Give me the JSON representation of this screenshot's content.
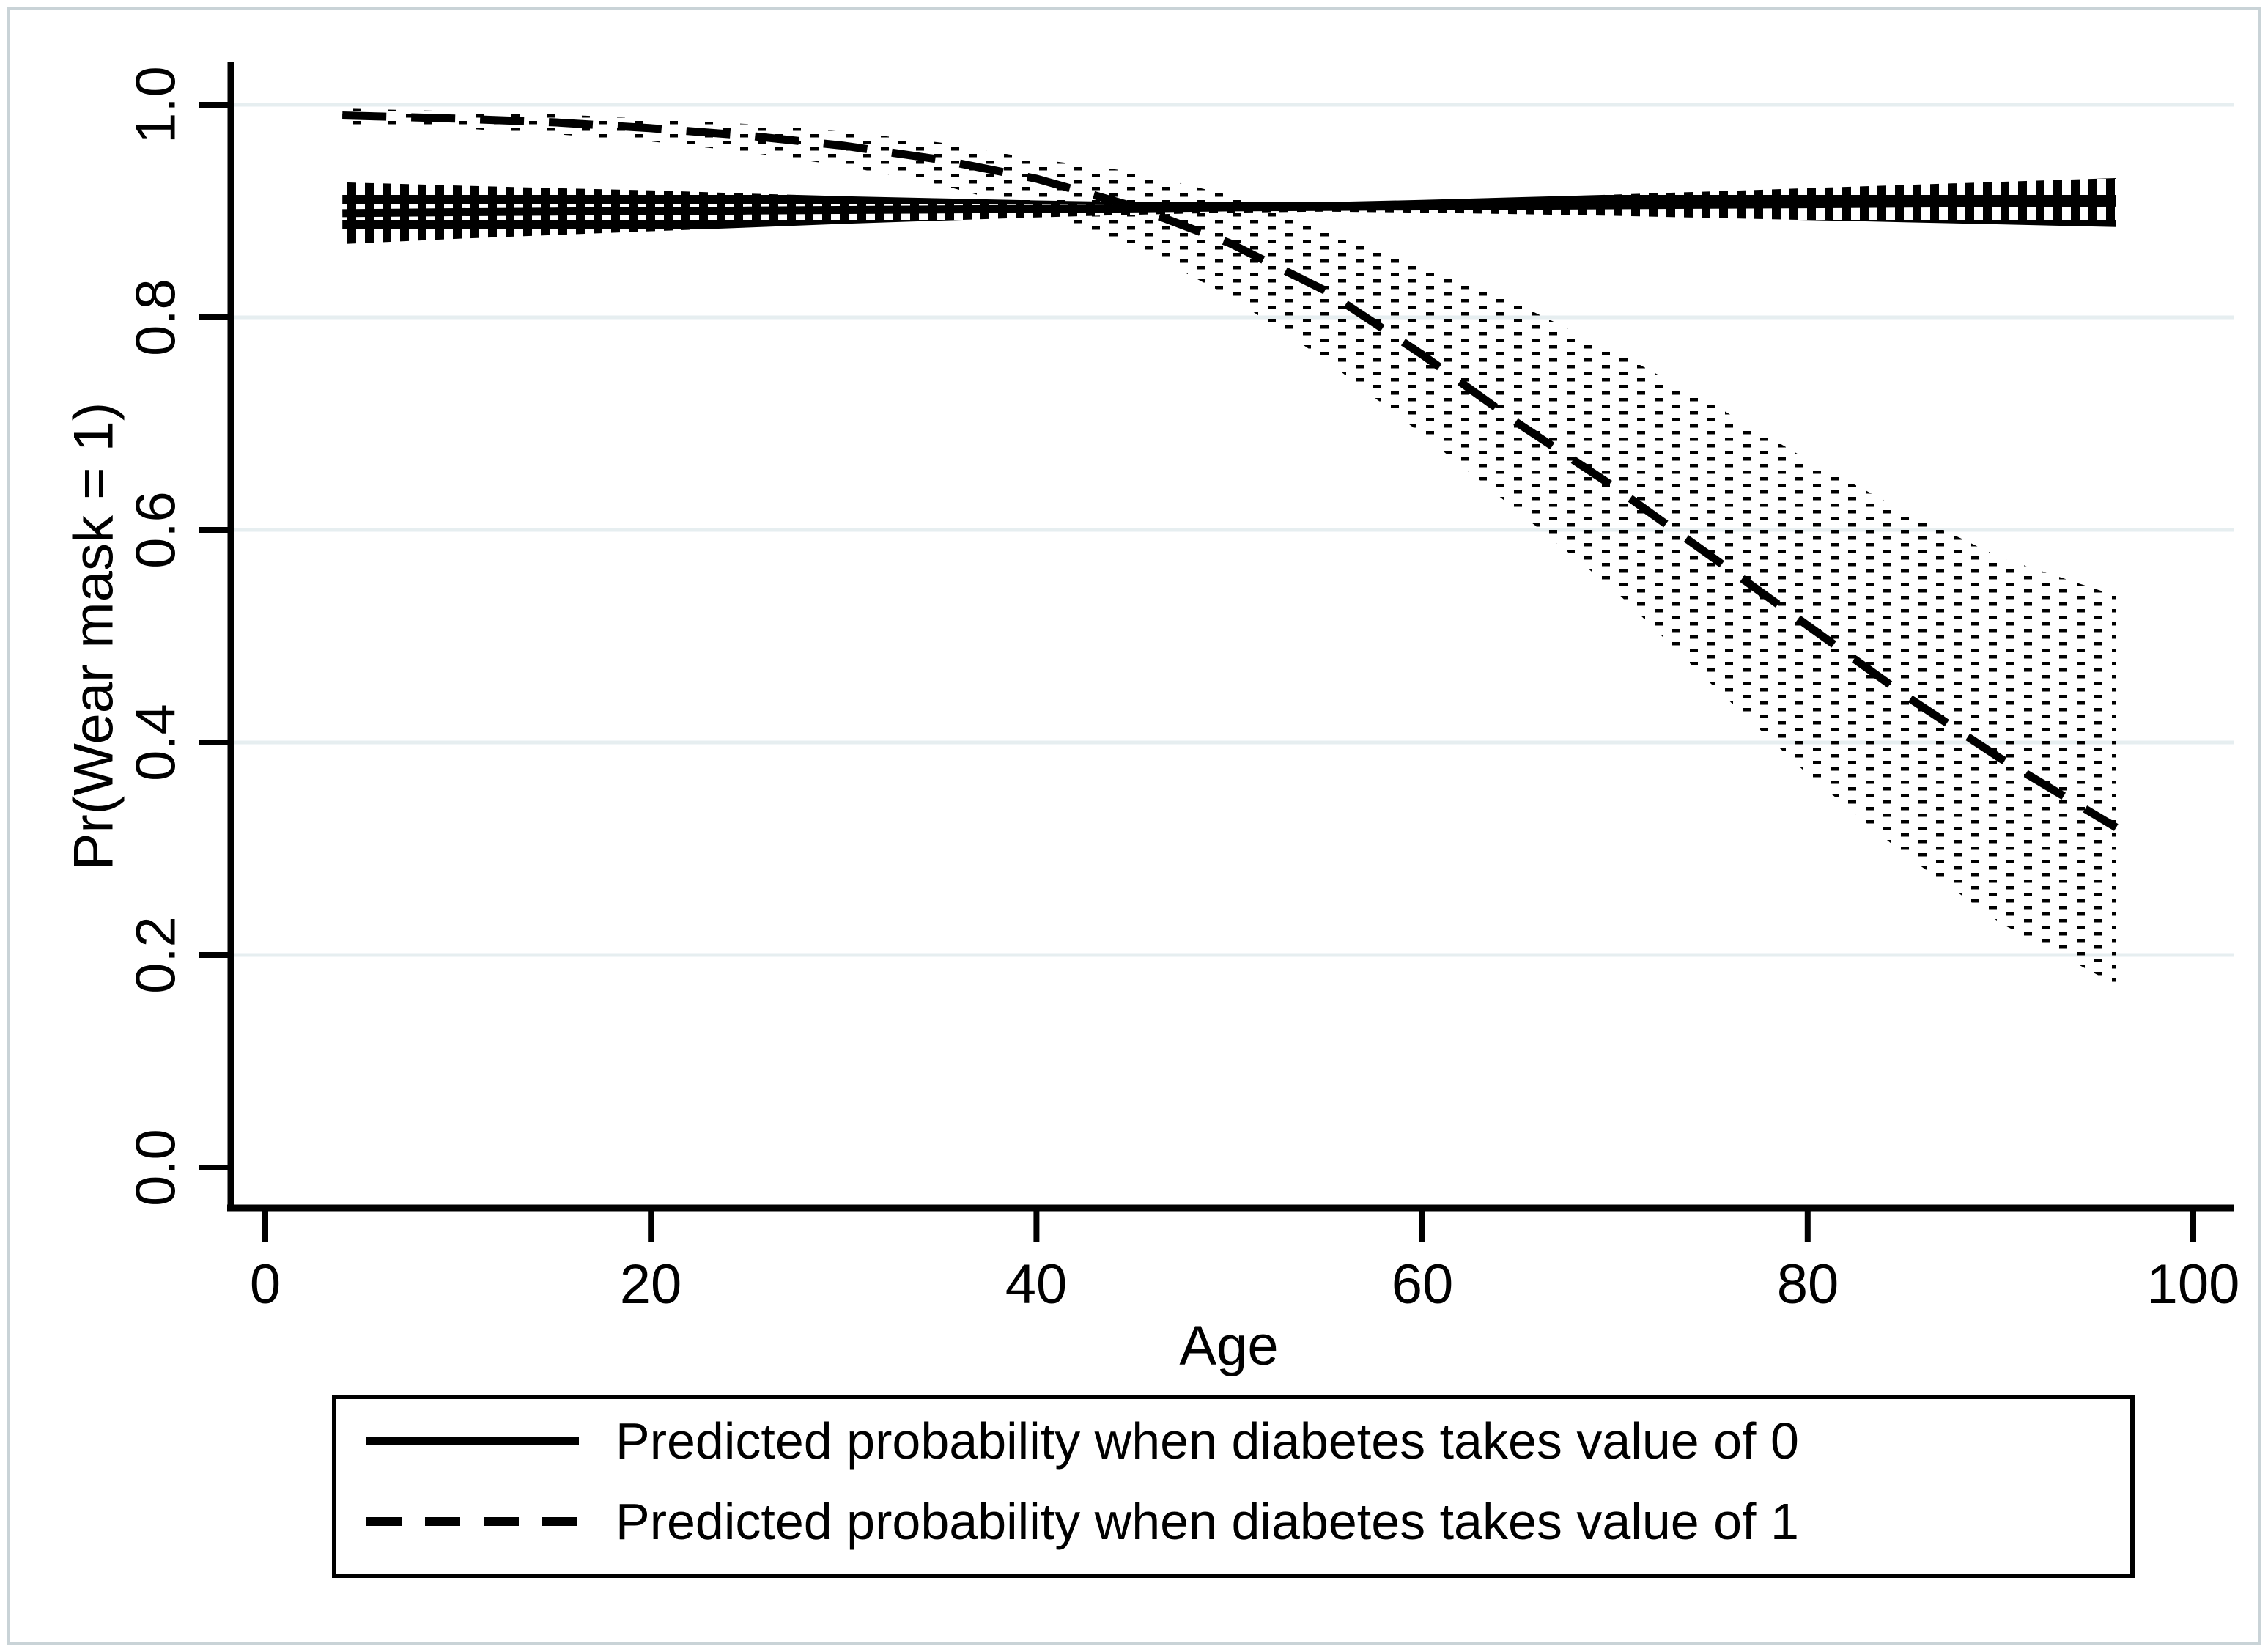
{
  "colors": {
    "foreground": "#000000",
    "background": "#ffffff",
    "gridline": "#e6eef0",
    "outer_frame": "#c9d3d7"
  },
  "chart_data": {
    "type": "line",
    "title": "",
    "xlabel": "Age",
    "ylabel": "Pr(Wear mask = 1)",
    "xlim": [
      0,
      100
    ],
    "ylim": [
      0.0,
      1.0
    ],
    "grid": "horizontal-only",
    "x_ticks": [
      0,
      20,
      40,
      60,
      80,
      100
    ],
    "x_ticklabels": [
      "0",
      "20",
      "40",
      "60",
      "80",
      "100"
    ],
    "y_ticks": [
      0.0,
      0.2,
      0.4,
      0.6,
      0.8,
      1.0
    ],
    "y_ticklabels": [
      "0.0",
      "0.2",
      "0.4",
      "0.6",
      "0.8",
      "1.0"
    ],
    "gridline_values": [
      0.2,
      0.4,
      0.6,
      0.8,
      1.0
    ],
    "x": [
      4,
      10,
      15,
      20,
      25,
      30,
      35,
      40,
      45,
      50,
      55,
      60,
      65,
      70,
      75,
      80,
      85,
      90,
      96
    ],
    "series": [
      {
        "name": "Predicted probability when diabetes takes value of 0",
        "line_style": "solid",
        "ci_fill_pattern": "black-with-white-holes",
        "values": [
          0.898,
          0.899,
          0.8995,
          0.9,
          0.9005,
          0.901,
          0.9015,
          0.902,
          0.9025,
          0.9035,
          0.904,
          0.9045,
          0.905,
          0.9055,
          0.906,
          0.9065,
          0.907,
          0.9075,
          0.908
        ],
        "ci_lower": [
          0.869,
          0.874,
          0.8775,
          0.881,
          0.8845,
          0.888,
          0.891,
          0.894,
          0.8965,
          0.8985,
          0.8995,
          0.8985,
          0.897,
          0.8955,
          0.8935,
          0.8915,
          0.8895,
          0.8875,
          0.885
        ],
        "ci_upper": [
          0.927,
          0.924,
          0.9215,
          0.9195,
          0.9165,
          0.914,
          0.912,
          0.91,
          0.9085,
          0.9085,
          0.9085,
          0.9105,
          0.913,
          0.9155,
          0.9185,
          0.9215,
          0.9245,
          0.9275,
          0.931
        ]
      },
      {
        "name": "Predicted probability when diabetes takes value of 1",
        "line_style": "dashed",
        "ci_fill_pattern": "dotted-lattice",
        "values": [
          0.99,
          0.987,
          0.9835,
          0.978,
          0.971,
          0.9615,
          0.9485,
          0.9305,
          0.9045,
          0.87,
          0.825,
          0.765,
          0.7,
          0.64,
          0.575,
          0.51,
          0.445,
          0.385,
          0.32
        ],
        "ci_lower": [
          0.982,
          0.978,
          0.9725,
          0.9655,
          0.9555,
          0.9425,
          0.925,
          0.9,
          0.868,
          0.82,
          0.76,
          0.69,
          0.617,
          0.543,
          0.455,
          0.37,
          0.295,
          0.23,
          0.172
        ],
        "ci_upper": [
          0.9965,
          0.994,
          0.991,
          0.987,
          0.982,
          0.975,
          0.9645,
          0.949,
          0.937,
          0.915,
          0.886,
          0.851,
          0.812,
          0.768,
          0.719,
          0.666,
          0.618,
          0.574,
          0.538
        ]
      }
    ],
    "legend_position": "bottom"
  },
  "legend": {
    "entries": [
      {
        "label": "Predicted probability when diabetes takes value of 0",
        "sample": "solid-line"
      },
      {
        "label": "Predicted probability when diabetes takes value of 1",
        "sample": "dashed-line"
      }
    ]
  }
}
